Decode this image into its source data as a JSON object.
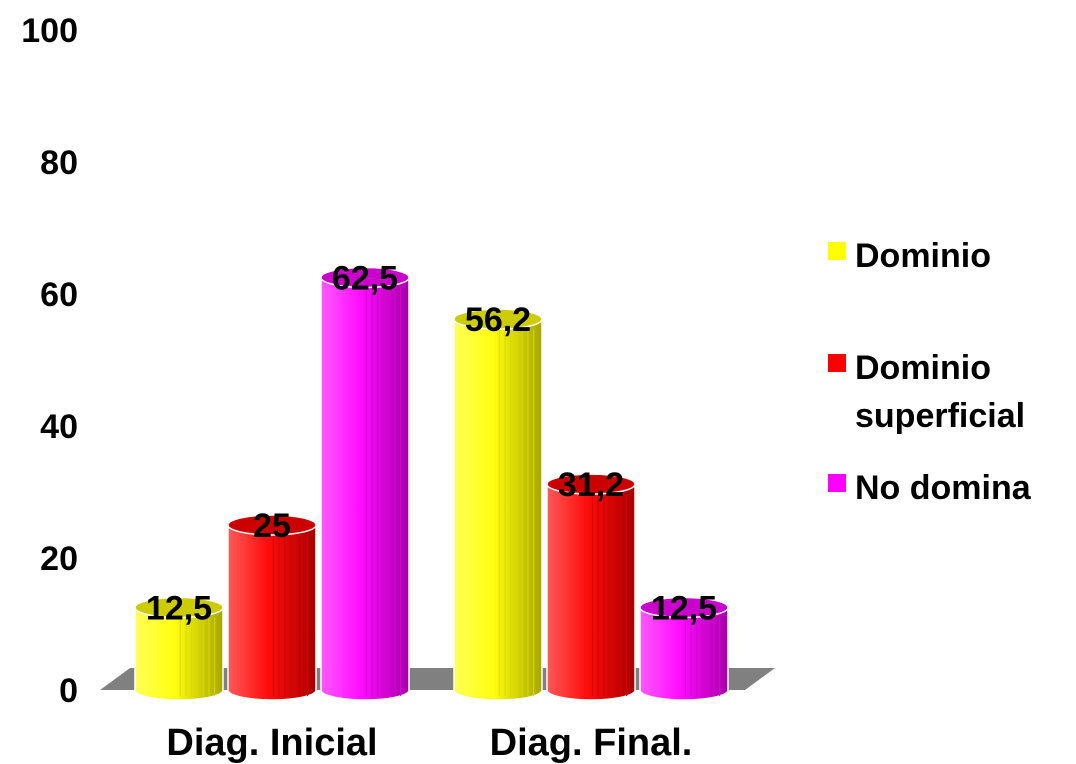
{
  "chart_data": {
    "type": "bar",
    "categories": [
      "Diag. Inicial",
      "Diag. Final."
    ],
    "series": [
      {
        "name": "Dominio",
        "name_lines": [
          "Dominio"
        ],
        "values": [
          12.5,
          56.2
        ],
        "labels": [
          "12,5",
          "56,2"
        ],
        "color": "#ffff00"
      },
      {
        "name": "Dominio superficial",
        "name_lines": [
          "Dominio",
          "superficial"
        ],
        "values": [
          25,
          31.2
        ],
        "labels": [
          "25",
          "31,2"
        ],
        "color": "#ff0000"
      },
      {
        "name": "No domina",
        "name_lines": [
          "No domina"
        ],
        "values": [
          62.5,
          12.5
        ],
        "labels": [
          "62,5",
          "12,5"
        ],
        "color": "#ff00ff"
      }
    ],
    "yticks": [
      "0",
      "20",
      "40",
      "60",
      "80",
      "100"
    ],
    "ylim": [
      0,
      100
    ],
    "grid": false,
    "legend": "right",
    "style": "3d-cylinder"
  }
}
